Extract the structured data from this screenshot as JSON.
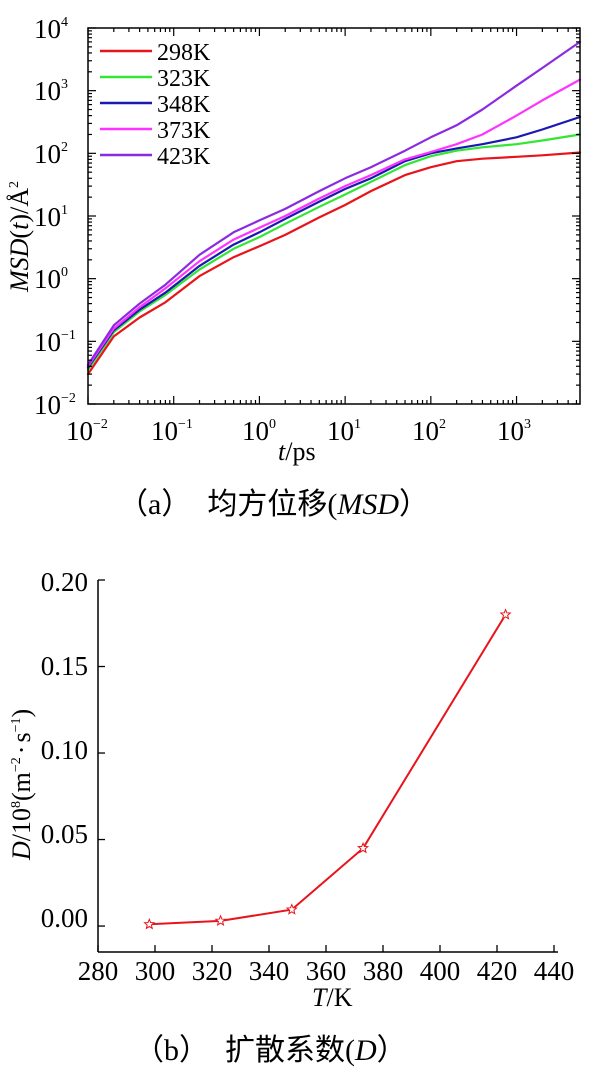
{
  "chart_data": [
    {
      "type": "line",
      "scale": "log-log",
      "xlabel": {
        "italic": "t",
        "rest": "/ps"
      },
      "ylabel": {
        "italic": "MSD",
        "mid": "(",
        "italic2": "t",
        "rest": ")/Å",
        "sup": "2"
      },
      "xlim": [
        0.01,
        5500
      ],
      "ylim": [
        0.01,
        10000
      ],
      "xticks": [
        {
          "base": "10",
          "exp": "−2"
        },
        {
          "base": "10",
          "exp": "−1"
        },
        {
          "base": "10",
          "exp": "0"
        },
        {
          "base": "10",
          "exp": "1"
        },
        {
          "base": "10",
          "exp": "2"
        },
        {
          "base": "10",
          "exp": "3"
        }
      ],
      "yticks": [
        {
          "base": "10",
          "exp": "−2"
        },
        {
          "base": "10",
          "exp": "−1"
        },
        {
          "base": "10",
          "exp": "0"
        },
        {
          "base": "10",
          "exp": "1"
        },
        {
          "base": "10",
          "exp": "2"
        },
        {
          "base": "10",
          "exp": "3"
        },
        {
          "base": "10",
          "exp": "4"
        }
      ],
      "legend_position": "top-left",
      "series": [
        {
          "name": "298K",
          "color": "#e8141c",
          "x": [
            0.01,
            0.02,
            0.04,
            0.08,
            0.2,
            0.5,
            1,
            2,
            5,
            10,
            20,
            50,
            100,
            200,
            400,
            1000,
            2000,
            5500
          ],
          "y": [
            0.03,
            0.12,
            0.24,
            0.42,
            1.1,
            2.2,
            3.3,
            5,
            9.5,
            15,
            25,
            45,
            60,
            75,
            82,
            88,
            93,
            103
          ]
        },
        {
          "name": "323K",
          "color": "#33e633",
          "x": [
            0.01,
            0.02,
            0.04,
            0.08,
            0.2,
            0.5,
            1,
            2,
            5,
            10,
            20,
            50,
            100,
            200,
            400,
            1000,
            2000,
            5500
          ],
          "y": [
            0.035,
            0.14,
            0.3,
            0.55,
            1.4,
            3,
            4.6,
            7.5,
            14,
            22,
            35,
            65,
            90,
            110,
            125,
            140,
            160,
            200
          ]
        },
        {
          "name": "348K",
          "color": "#1a1ab3",
          "x": [
            0.01,
            0.02,
            0.04,
            0.08,
            0.2,
            0.5,
            1,
            2,
            5,
            10,
            20,
            50,
            100,
            200,
            400,
            1000,
            2000,
            5500
          ],
          "y": [
            0.038,
            0.15,
            0.32,
            0.6,
            1.6,
            3.5,
            5.5,
            9,
            17,
            27,
            40,
            75,
            100,
            120,
            140,
            180,
            240,
            380
          ]
        },
        {
          "name": "373K",
          "color": "#ff33ff",
          "x": [
            0.01,
            0.02,
            0.04,
            0.08,
            0.2,
            0.5,
            1,
            2,
            5,
            10,
            20,
            50,
            100,
            200,
            400,
            1000,
            2000,
            5500
          ],
          "y": [
            0.04,
            0.16,
            0.35,
            0.7,
            1.9,
            4.2,
            6.5,
            10,
            19,
            30,
            45,
            80,
            105,
            140,
            200,
            400,
            700,
            1500
          ]
        },
        {
          "name": "423K",
          "color": "#8a2be2",
          "x": [
            0.01,
            0.02,
            0.04,
            0.08,
            0.2,
            0.5,
            1,
            2,
            5,
            10,
            20,
            50,
            100,
            200,
            400,
            1000,
            2000,
            5500
          ],
          "y": [
            0.042,
            0.18,
            0.4,
            0.8,
            2.4,
            5.5,
            8.5,
            13,
            25,
            40,
            60,
            110,
            180,
            280,
            500,
            1200,
            2300,
            6000
          ]
        }
      ]
    },
    {
      "type": "line",
      "xlabel": {
        "italic": "T",
        "rest": "/K"
      },
      "ylabel": {
        "italic": "D",
        "pre": "/10",
        "sup1": "8",
        "mid": "(m",
        "sup2": "−2",
        "dot": "·",
        "s": "s",
        "sup3": "−1",
        "close": ")"
      },
      "xlim": [
        280,
        440
      ],
      "ylim": [
        -0.015,
        0.2
      ],
      "xticks": [
        "280",
        "300",
        "320",
        "340",
        "360",
        "380",
        "400",
        "420",
        "440"
      ],
      "yticks": [
        "0.00",
        "0.05",
        "0.10",
        "0.15",
        "0.20"
      ],
      "marker": "star",
      "series": [
        {
          "color": "#e8141c",
          "x": [
            298,
            323,
            348,
            373,
            423
          ],
          "y": [
            0.001,
            0.003,
            0.0095,
            0.045,
            0.18
          ]
        }
      ]
    }
  ],
  "captions": {
    "a_label": "（a）",
    "a_text": "均方位移(",
    "a_italic": "MSD",
    "a_close": "）",
    "b_label": "（b）",
    "b_text": "扩散系数(",
    "b_italic": "D",
    "b_close": "）"
  }
}
